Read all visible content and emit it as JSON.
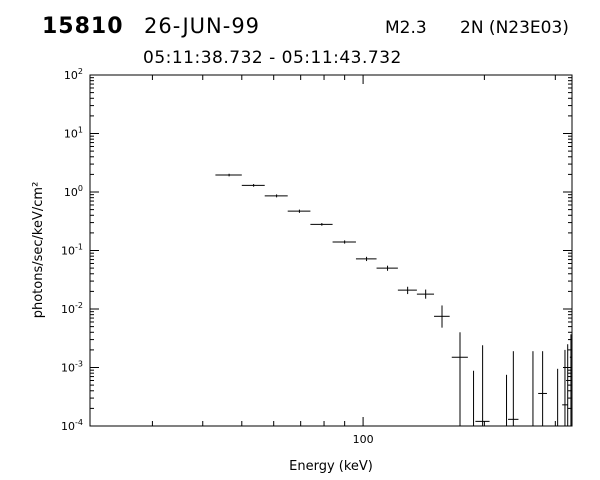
{
  "header": {
    "event_id": "15810",
    "date": "26-JUN-99",
    "flare_class": "M2.3",
    "optical_class": "2N (N23E03)",
    "time_range": "05:11:38.732 - 05:11:43.732"
  },
  "chart_data": {
    "type": "scatter",
    "title": "",
    "xlabel": "Energy (keV)",
    "ylabel": "photons/sec/keV/cm²",
    "xscale": "log",
    "yscale": "log",
    "xlim": [
      21,
      330
    ],
    "ylim": [
      0.0001,
      100
    ],
    "grid": false,
    "x_ticks": [
      {
        "value": 100,
        "label": "100",
        "major": true
      }
    ],
    "y_ticks": [
      {
        "value": 100,
        "base": "10",
        "exp": "2"
      },
      {
        "value": 10,
        "base": "10",
        "exp": "1"
      },
      {
        "value": 1,
        "base": "10",
        "exp": "0"
      },
      {
        "value": 0.1,
        "base": "10",
        "exp": "-1"
      },
      {
        "value": 0.01,
        "base": "10",
        "exp": "-2"
      },
      {
        "value": 0.001,
        "base": "10",
        "exp": "-3"
      },
      {
        "value": 0.0001,
        "base": "10",
        "exp": "-4"
      }
    ],
    "points": [
      {
        "x": 46.5,
        "y": 1.95,
        "xlo": 43,
        "xhi": 50,
        "ylo": 1.85,
        "yhi": 2.05
      },
      {
        "x": 53.5,
        "y": 1.3,
        "xlo": 50,
        "xhi": 57,
        "ylo": 1.23,
        "yhi": 1.37
      },
      {
        "x": 61,
        "y": 0.86,
        "xlo": 57,
        "xhi": 65,
        "ylo": 0.81,
        "yhi": 0.91
      },
      {
        "x": 69.5,
        "y": 0.47,
        "xlo": 65,
        "xhi": 74,
        "ylo": 0.44,
        "yhi": 0.5
      },
      {
        "x": 79,
        "y": 0.28,
        "xlo": 74,
        "xhi": 84,
        "ylo": 0.265,
        "yhi": 0.295
      },
      {
        "x": 90,
        "y": 0.14,
        "xlo": 84,
        "xhi": 96,
        "ylo": 0.131,
        "yhi": 0.149
      },
      {
        "x": 102,
        "y": 0.072,
        "xlo": 96,
        "xhi": 108,
        "ylo": 0.066,
        "yhi": 0.078
      },
      {
        "x": 115,
        "y": 0.05,
        "xlo": 108,
        "xhi": 122,
        "ylo": 0.045,
        "yhi": 0.055
      },
      {
        "x": 129,
        "y": 0.021,
        "xlo": 122,
        "xhi": 136,
        "ylo": 0.018,
        "yhi": 0.024
      },
      {
        "x": 143,
        "y": 0.018,
        "xlo": 136,
        "xhi": 150,
        "ylo": 0.015,
        "yhi": 0.0215
      },
      {
        "x": 157,
        "y": 0.0075,
        "xlo": 150,
        "xhi": 164,
        "ylo": 0.0048,
        "yhi": 0.0115
      },
      {
        "x": 174,
        "y": 0.0015,
        "xlo": 166,
        "xhi": 182,
        "ylo": 5e-05,
        "yhi": 0.004
      },
      {
        "x": 188,
        "y": null,
        "xlo": 188,
        "xhi": 188,
        "ylo": 5e-05,
        "yhi": 0.00088
      },
      {
        "x": 198,
        "y": 0.00012,
        "xlo": 190,
        "xhi": 206,
        "ylo": 5e-05,
        "yhi": 0.0024
      },
      {
        "x": 227,
        "y": null,
        "xlo": 227,
        "xhi": 227,
        "ylo": 5e-05,
        "yhi": 0.00075
      },
      {
        "x": 236,
        "y": 0.00013,
        "xlo": 229,
        "xhi": 243,
        "ylo": 5e-05,
        "yhi": 0.0019
      },
      {
        "x": 264,
        "y": null,
        "xlo": 264,
        "xhi": 264,
        "ylo": 5e-05,
        "yhi": 0.0019
      },
      {
        "x": 279,
        "y": 0.00036,
        "xlo": 272,
        "xhi": 286,
        "ylo": 5e-05,
        "yhi": 0.0019
      },
      {
        "x": 304,
        "y": null,
        "xlo": 304,
        "xhi": 304,
        "ylo": 5e-05,
        "yhi": 0.00095
      },
      {
        "x": 317,
        "y": 0.00023,
        "xlo": 312,
        "xhi": 322,
        "ylo": 5e-05,
        "yhi": 0.002
      },
      {
        "x": 322,
        "y": 0.0006,
        "xlo": 319,
        "xhi": 326,
        "ylo": 5e-05,
        "yhi": 0.0025
      },
      {
        "x": 328,
        "y": 0.0015,
        "xlo": 326,
        "xhi": 330,
        "ylo": 5e-05,
        "yhi": 0.0037
      }
    ]
  }
}
